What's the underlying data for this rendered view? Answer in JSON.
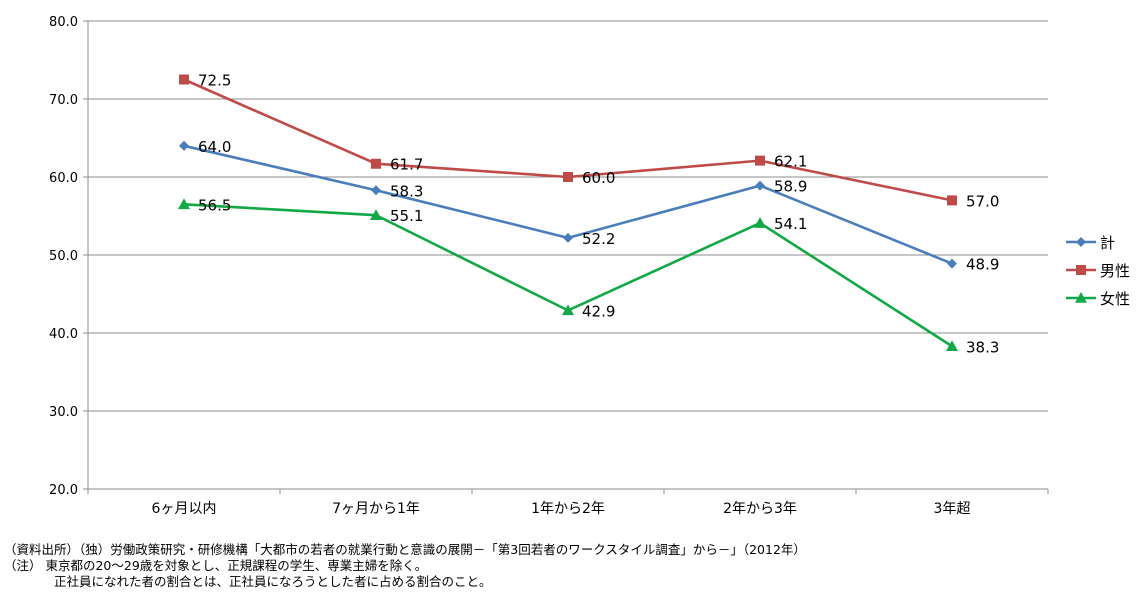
{
  "chart_data": {
    "type": "line",
    "categories": [
      "6ヶ月以内",
      "7ヶ月から1年",
      "1年から2年",
      "2年から3年",
      "3年超"
    ],
    "y_ticks": [
      "20.0",
      "30.0",
      "40.0",
      "50.0",
      "60.0",
      "70.0",
      "80.0"
    ],
    "ylim": [
      20,
      80
    ],
    "grid": true,
    "legend_position": "right",
    "series": [
      {
        "name": "計",
        "values": [
          64.0,
          58.3,
          52.2,
          58.9,
          48.9
        ],
        "labels": [
          "64.0",
          "58.3",
          "52.2",
          "58.9",
          "48.9"
        ],
        "color": "#4a7ebb",
        "marker": "diamond"
      },
      {
        "name": "男性",
        "values": [
          72.5,
          61.7,
          60.0,
          62.1,
          57.0
        ],
        "labels": [
          "72.5",
          "61.7",
          "60.0",
          "62.1",
          "57.0"
        ],
        "color": "#be4b48",
        "marker": "square"
      },
      {
        "name": "女性",
        "values": [
          56.5,
          55.1,
          42.9,
          54.1,
          38.3
        ],
        "labels": [
          "56.5",
          "55.1",
          "42.9",
          "54.1",
          "38.3"
        ],
        "color": "#13a846",
        "marker": "triangle"
      }
    ]
  },
  "notes": {
    "source": "（資料出所）（独）労働政策研究・研修機構「大都市の若者の就業行動と意識の展開－「第3回若者のワークスタイル調査」から－」（2012年）",
    "note1": "（注） 東京都の20～29歳を対象とし、正規課程の学生、専業主婦を除く。",
    "note2": "正社員になれた者の割合とは、正社員になろうとした者に占める割合のこと。"
  }
}
